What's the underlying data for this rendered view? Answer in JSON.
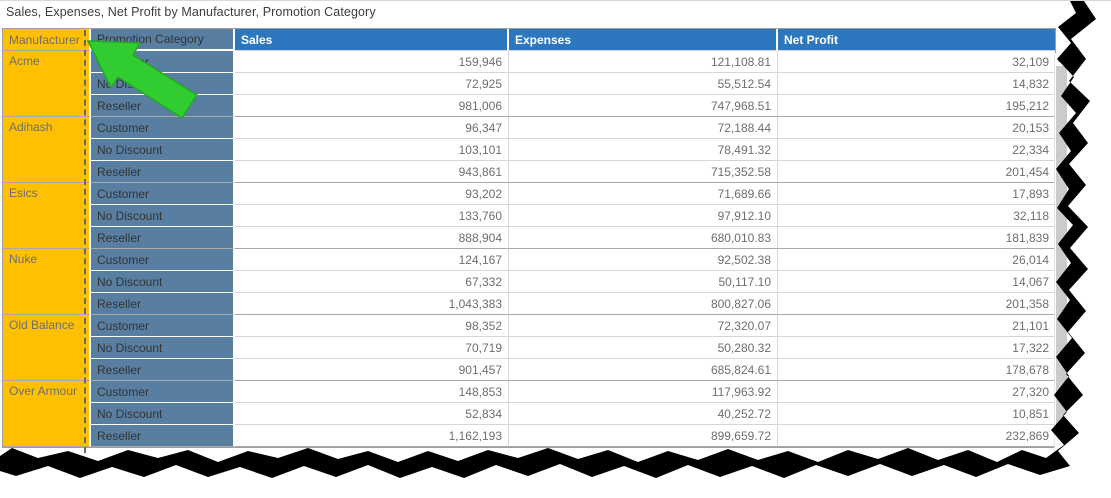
{
  "title": "Sales, Expenses, Net Profit by Manufacturer, Promotion Category",
  "table": {
    "columns": [
      "Manufacturer",
      "Promotion Category",
      "Sales",
      "Expenses",
      "Net Profit"
    ],
    "groups": [
      {
        "manufacturer": "Acme",
        "rows": [
          {
            "promotion": "Customer",
            "sales": "159,946",
            "expenses": "121,108.81",
            "net_profit": "32,109"
          },
          {
            "promotion": "No Discount",
            "sales": "72,925",
            "expenses": "55,512.54",
            "net_profit": "14,832"
          },
          {
            "promotion": "Reseller",
            "sales": "981,006",
            "expenses": "747,968.51",
            "net_profit": "195,212"
          }
        ]
      },
      {
        "manufacturer": "Adihash",
        "rows": [
          {
            "promotion": "Customer",
            "sales": "96,347",
            "expenses": "72,188.44",
            "net_profit": "20,153"
          },
          {
            "promotion": "No Discount",
            "sales": "103,101",
            "expenses": "78,491.32",
            "net_profit": "22,334"
          },
          {
            "promotion": "Reseller",
            "sales": "943,861",
            "expenses": "715,352.58",
            "net_profit": "201,454"
          }
        ]
      },
      {
        "manufacturer": "Esics",
        "rows": [
          {
            "promotion": "Customer",
            "sales": "93,202",
            "expenses": "71,689.66",
            "net_profit": "17,893"
          },
          {
            "promotion": "No Discount",
            "sales": "133,760",
            "expenses": "97,912.10",
            "net_profit": "32,118"
          },
          {
            "promotion": "Reseller",
            "sales": "888,904",
            "expenses": "680,010.83",
            "net_profit": "181,839"
          }
        ]
      },
      {
        "manufacturer": "Nuke",
        "rows": [
          {
            "promotion": "Customer",
            "sales": "124,167",
            "expenses": "92,502.38",
            "net_profit": "26,014"
          },
          {
            "promotion": "No Discount",
            "sales": "67,332",
            "expenses": "50,117.10",
            "net_profit": "14,067"
          },
          {
            "promotion": "Reseller",
            "sales": "1,043,383",
            "expenses": "800,827.06",
            "net_profit": "201,358"
          }
        ]
      },
      {
        "manufacturer": "Old Balance",
        "rows": [
          {
            "promotion": "Customer",
            "sales": "98,352",
            "expenses": "72,320.07",
            "net_profit": "21,101"
          },
          {
            "promotion": "No Discount",
            "sales": "70,719",
            "expenses": "50,280.32",
            "net_profit": "17,322"
          },
          {
            "promotion": "Reseller",
            "sales": "901,457",
            "expenses": "685,824.61",
            "net_profit": "178,678"
          }
        ]
      },
      {
        "manufacturer": "Over Armour",
        "rows": [
          {
            "promotion": "Customer",
            "sales": "148,853",
            "expenses": "117,963.92",
            "net_profit": "27,320"
          },
          {
            "promotion": "No Discount",
            "sales": "52,834",
            "expenses": "40,252.72",
            "net_profit": "10,851"
          },
          {
            "promotion": "Reseller",
            "sales": "1,162,193",
            "expenses": "899,659.72",
            "net_profit": "232,869"
          }
        ]
      }
    ]
  },
  "annotations": {
    "arrow_icon": "green-arrow-pointing-at-manufacturer-column",
    "dashed_selection": "manufacturer-column-right-edge"
  },
  "colors": {
    "manufacturer_column": "#FFC000",
    "promotion_column": "#587FA2",
    "value_header": "#2D77BE",
    "arrow_green": "#30CC30",
    "arrow_green_edge": "#23A823",
    "dashed_border": "#696969",
    "group_separator": "#A8A8A8",
    "gridline": "#D6D6D6",
    "tear_black": "#000000"
  }
}
